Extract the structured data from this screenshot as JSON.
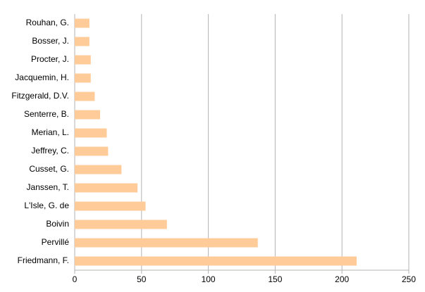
{
  "chart_data": {
    "type": "bar",
    "orientation": "horizontal",
    "categories": [
      "Rouhan, G.",
      "Bosser, J.",
      "Procter, J.",
      "Jacquemin, H.",
      "Fitzgerald, D.V.",
      "Senterre, B.",
      "Merian, L.",
      "Jeffrey, C.",
      "Cusset, G.",
      "Janssen, T.",
      "L'Isle, G. de",
      "Boivin",
      "Pervillé",
      "Friedmann, F."
    ],
    "values": [
      11,
      11,
      12,
      12,
      15,
      19,
      24,
      25,
      35,
      47,
      53,
      69,
      137,
      211
    ],
    "color": "#ffcc99",
    "xlim": [
      0,
      250
    ],
    "xticks": [
      0,
      50,
      100,
      150,
      200,
      250
    ],
    "grid": true
  }
}
